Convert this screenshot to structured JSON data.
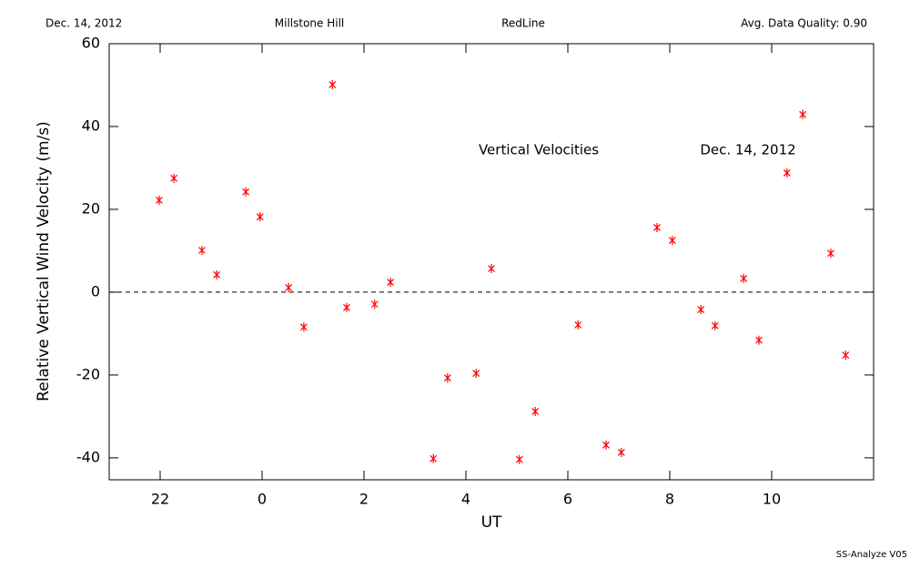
{
  "header": {
    "date": "Dec. 14, 2012",
    "site": "Millstone Hill",
    "instrument": "RedLine",
    "quality": "Avg. Data Quality: 0.90"
  },
  "footer": "SS-Analyze V05",
  "chart_data": {
    "type": "scatter",
    "annotations": [
      "Vertical Velocities",
      "Dec. 14, 2012"
    ],
    "xlabel": "UT",
    "ylabel": "Relative Vertical Wind Velocity (m/s)",
    "xlim": [
      -3,
      12
    ],
    "ylim": [
      -45.3,
      60
    ],
    "xticks": [
      {
        "value": -2,
        "label": "22"
      },
      0,
      2,
      4,
      6,
      8,
      10
    ],
    "yticks": [
      -40,
      -20,
      0,
      20,
      40,
      60
    ],
    "reference_line": 0,
    "color": "#ff0000",
    "x": [
      -2.02,
      -1.73,
      -1.18,
      -0.89,
      -0.32,
      -0.04,
      0.52,
      0.82,
      1.38,
      1.66,
      2.21,
      2.52,
      3.36,
      3.64,
      4.2,
      4.5,
      5.05,
      5.36,
      6.2,
      6.75,
      7.05,
      7.75,
      8.05,
      8.61,
      8.89,
      9.45,
      9.75,
      10.3,
      10.61,
      11.16,
      11.45
    ],
    "values": [
      22.2,
      27.5,
      10.1,
      4.2,
      24.2,
      18.2,
      1.1,
      -8.4,
      50.1,
      -3.7,
      -2.9,
      2.4,
      -40.2,
      -20.7,
      -19.6,
      5.7,
      -40.4,
      -28.8,
      -7.9,
      -36.9,
      -38.7,
      15.6,
      12.5,
      -4.2,
      -8.1,
      3.3,
      -11.6,
      28.8,
      42.9,
      9.4,
      -15.2
    ]
  }
}
